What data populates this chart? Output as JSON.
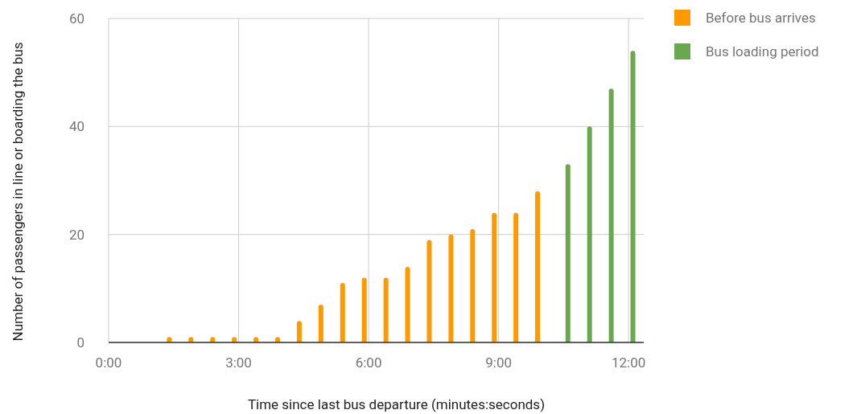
{
  "chart_data": {
    "type": "bar",
    "xlabel": "Time since last bus departure (minutes:seconds)",
    "ylabel": "Number of passengers in line or boarding the bus",
    "xlim": [
      0,
      12.35
    ],
    "xticks": [
      {
        "value": 0,
        "label": "0:00"
      },
      {
        "value": 3,
        "label": "3:00"
      },
      {
        "value": 6,
        "label": "6:00"
      },
      {
        "value": 9,
        "label": "9:00"
      },
      {
        "value": 12,
        "label": "12:00"
      }
    ],
    "ylim": [
      0,
      60
    ],
    "yticks": [
      0,
      20,
      40,
      60
    ],
    "grid": true,
    "legend": "top right",
    "series": [
      {
        "name": "Before bus arrives",
        "color": "#ff9900",
        "x": [
          1.4,
          1.9,
          2.4,
          2.9,
          3.4,
          3.9,
          4.4,
          4.9,
          5.4,
          5.9,
          6.4,
          6.9,
          7.4,
          7.9,
          8.4,
          8.9,
          9.4,
          9.9
        ],
        "values": [
          1,
          1,
          1,
          1,
          1,
          1,
          4,
          7,
          11,
          12,
          12,
          14,
          19,
          20,
          21,
          24,
          24,
          28
        ]
      },
      {
        "name": "Bus loading period",
        "color": "#6aa84f",
        "x": [
          10.6,
          11.1,
          11.6,
          12.1
        ],
        "values": [
          33,
          40,
          47,
          54
        ]
      }
    ]
  }
}
